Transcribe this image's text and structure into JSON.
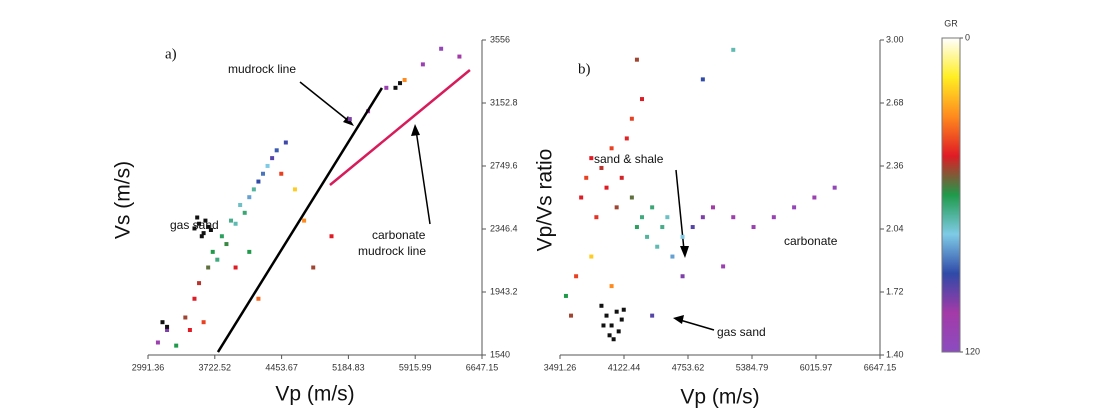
{
  "chart_data": [
    {
      "type": "scatter",
      "panel": "a)",
      "xlabel": "Vp (m/s)",
      "ylabel": "Vs (m/s)",
      "xlim": [
        2991.36,
        6647.15
      ],
      "xticks": [
        2991.36,
        3722.52,
        4453.67,
        5184.83,
        5915.99,
        6647.15
      ],
      "ylim": [
        1540,
        3556
      ],
      "yticks": [
        1540,
        1943.2,
        2346.4,
        2749.6,
        3152.8,
        3556
      ],
      "annotations": [
        "mudrock line",
        "gas sand",
        "carbonate",
        "mudrock line"
      ],
      "points": {
        "x": [
          3100,
          3200,
          3300,
          3400,
          3500,
          3550,
          3650,
          3700,
          3750,
          3800,
          3850,
          3900,
          3950,
          4000,
          4050,
          4100,
          4150,
          4200,
          4250,
          4300,
          4350,
          4400,
          4450,
          4500,
          4100,
          3950,
          4600,
          4700,
          5200,
          5400,
          5600,
          5800,
          6000,
          6200,
          6400,
          5000,
          4800,
          3600,
          3450,
          4200
        ],
        "y": [
          1620,
          1700,
          1600,
          1780,
          1900,
          2000,
          2100,
          2200,
          2150,
          2300,
          2250,
          2400,
          2380,
          2500,
          2450,
          2550,
          2600,
          2650,
          2700,
          2750,
          2800,
          2850,
          2700,
          2900,
          2200,
          2100,
          2600,
          2400,
          3050,
          3100,
          3250,
          3300,
          3400,
          3500,
          3450,
          2300,
          2100,
          1750,
          1700,
          1900
        ],
        "gr": [
          110,
          100,
          60,
          50,
          45,
          48,
          55,
          60,
          65,
          62,
          58,
          66,
          70,
          72,
          64,
          80,
          68,
          90,
          85,
          75,
          95,
          88,
          40,
          92,
          60,
          45,
          20,
          30,
          100,
          105,
          110,
          30,
          110,
          115,
          105,
          45,
          50,
          40,
          45,
          35
        ]
      },
      "gas_sand_points": {
        "color": "#111111",
        "x": [
          3500,
          3550,
          3600,
          3620,
          3580,
          3650,
          3530,
          3680,
          3150,
          3200,
          5700,
          5750
        ],
        "y": [
          2350,
          2380,
          2320,
          2400,
          2300,
          2360,
          2420,
          2340,
          1750,
          1720,
          3250,
          3280
        ]
      },
      "lines": [
        {
          "color": "#000000",
          "x": [
            3757,
            5552
          ],
          "y": [
            1559,
            3249
          ]
        },
        {
          "color": "#d81b5a",
          "x": [
            4983,
            6515
          ],
          "y": [
            2628,
            3364
          ]
        }
      ]
    },
    {
      "type": "scatter",
      "panel": "b)",
      "xlabel": "Vp (m/s)",
      "ylabel": "Vp/Vs ratio",
      "xlim": [
        3491.26,
        6647.15
      ],
      "xticks": [
        3491.26,
        4122.44,
        4753.62,
        5384.79,
        6015.97,
        6647.15
      ],
      "ylim": [
        1.4,
        3.0
      ],
      "yticks": [
        {
          "value": 1.4,
          "label": "1.40"
        },
        1.72,
        2.04,
        2.36,
        2.68,
        {
          "value": 3.0,
          "label": "3.00"
        }
      ],
      "annotations": [
        "sand & shale",
        "carbonate",
        "gas sand"
      ],
      "points": {
        "x": [
          3600,
          3700,
          3750,
          3800,
          3850,
          3900,
          3950,
          4000,
          4050,
          4100,
          4150,
          4200,
          4250,
          4300,
          4350,
          4400,
          4450,
          4500,
          4550,
          4600,
          4700,
          4800,
          4900,
          5000,
          5200,
          5400,
          5600,
          5800,
          6000,
          6200,
          4300,
          4250,
          4900,
          5200,
          3650,
          3550,
          3800,
          4000,
          4700,
          5100,
          4400,
          4200
        ],
        "y": [
          1.6,
          2.2,
          2.3,
          2.4,
          2.1,
          2.35,
          2.25,
          2.45,
          2.15,
          2.3,
          2.5,
          2.2,
          2.05,
          2.1,
          2.0,
          2.15,
          1.95,
          2.05,
          2.1,
          1.9,
          2.0,
          2.05,
          2.1,
          2.15,
          2.1,
          2.05,
          2.1,
          2.15,
          2.2,
          2.25,
          2.7,
          2.9,
          2.8,
          2.95,
          1.8,
          1.7,
          1.9,
          1.75,
          1.8,
          1.85,
          1.6,
          2.6
        ],
        "gr": [
          50,
          45,
          40,
          45,
          42,
          48,
          45,
          40,
          50,
          46,
          44,
          55,
          62,
          65,
          68,
          64,
          70,
          66,
          72,
          80,
          75,
          95,
          100,
          105,
          108,
          110,
          112,
          115,
          110,
          115,
          45,
          50,
          90,
          70,
          40,
          60,
          20,
          30,
          100,
          110,
          95,
          40
        ]
      },
      "gas_sand_points": {
        "color": "#111111",
        "x": [
          3950,
          4000,
          4050,
          3980,
          4100,
          4020,
          3920,
          4070,
          3900,
          4120
        ],
        "y": [
          1.6,
          1.55,
          1.62,
          1.5,
          1.58,
          1.48,
          1.55,
          1.52,
          1.65,
          1.63
        ]
      },
      "lines": [],
      "colorbar": {
        "label": "GR",
        "lim": [
          0,
          120
        ],
        "ticks": [
          0,
          120
        ],
        "colormap": [
          "#ffffff",
          "#ffee22",
          "#ff8a1e",
          "#e01b24",
          "#1f9a4a",
          "#7fcbe6",
          "#2f4aa8",
          "#a43aa8",
          "#8a4cc0"
        ]
      }
    }
  ]
}
